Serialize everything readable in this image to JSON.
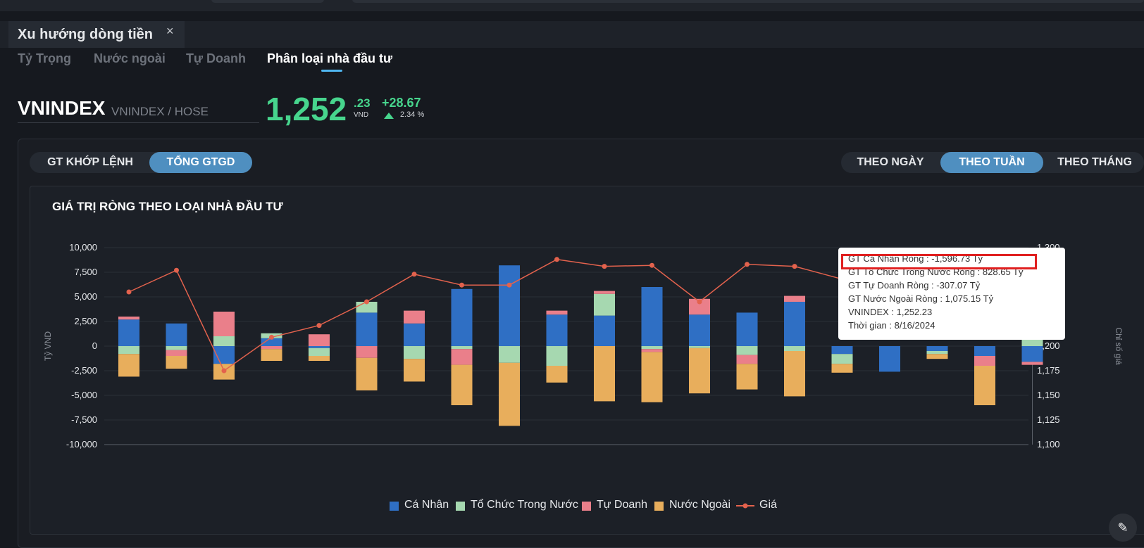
{
  "tab": {
    "title": "Xu hướng dòng tiền",
    "close": "×"
  },
  "subnav": [
    "Tỷ Trọng",
    "Nước ngoài",
    "Tự Doanh",
    "Phân loại nhà đầu tư"
  ],
  "ticker": {
    "symbol": "VNINDEX",
    "exchange": "VNINDEX / HOSE",
    "price_main": "1,252",
    "price_dec": ".23",
    "unit": "VND",
    "change": "+28.67",
    "pct": "2.34 %"
  },
  "value_toggle": [
    "GT KHỚP LỆNH",
    "TỔNG GTGD"
  ],
  "period_toggle": [
    "THEO NGÀY",
    "THEO TUẦN",
    "THEO THÁNG"
  ],
  "chart_title": "GIÁ TRỊ RÒNG THEO LOẠI NHÀ ĐẦU TƯ",
  "tooltip": [
    "GT Cá Nhân Ròng  : -1,596.73 Tỷ",
    "GT Tổ Chức Trong Nước Ròng : 828.65 Tỷ",
    "GT Tự Doanh Ròng : -307.07 Tỷ",
    "GT Nước Ngoài Ròng : 1,075.15 Tỷ",
    "VNINDEX : 1,252.23",
    "Thời gian : 8/16/2024"
  ],
  "colors": {
    "ca_nhan": "#2f6fc4",
    "to_chuc": "#a6d8b0",
    "tu_doanh": "#ea7f8a",
    "nuoc_ngoai": "#e8ae5c",
    "gia": "#e3624d",
    "accent": "#4f8fc0",
    "up": "#47d58d"
  },
  "chart_data": {
    "type": "bar",
    "stacked": true,
    "y_left_label": "Tỷ VND",
    "y_right_label": "Chỉ số giá",
    "y_left_ticks": [
      "10,000",
      "7,500",
      "5,000",
      "2,500",
      "0",
      "-2,500",
      "-5,000",
      "-7,500",
      "-10,000"
    ],
    "y_right_ticks": [
      "1,300",
      "1,275",
      "1,250",
      "1,225",
      "1,200",
      "1,175",
      "1,150",
      "1,125",
      "1,100"
    ],
    "ylim_left": [
      -10000,
      10000
    ],
    "ylim_right": [
      1100,
      1300
    ],
    "series": [
      {
        "name": "Cá Nhân",
        "values": [
          2700,
          2300,
          -1800,
          800,
          -200,
          3400,
          2300,
          5800,
          8200,
          3200,
          3100,
          6000,
          3200,
          3400,
          4500,
          -800,
          -2600,
          -500,
          -1000,
          -1597
        ]
      },
      {
        "name": "Tổ Chức Trong Nước",
        "values": [
          -800,
          -400,
          1000,
          500,
          -800,
          1100,
          -1300,
          -300,
          -1700,
          -2000,
          2200,
          -300,
          -200,
          -900,
          -500,
          -1000,
          0,
          -300,
          0,
          829
        ]
      },
      {
        "name": "Tự Doanh",
        "values": [
          300,
          -600,
          2500,
          -300,
          1200,
          -1200,
          1300,
          -1600,
          0,
          400,
          300,
          -300,
          1600,
          -900,
          600,
          0,
          0,
          0,
          -1000,
          -307
        ]
      },
      {
        "name": "Nước Ngoài",
        "values": [
          -2300,
          -1300,
          -1600,
          -1200,
          -500,
          -3300,
          -2300,
          -4100,
          -6400,
          -1700,
          -5600,
          -5100,
          -4600,
          -2600,
          -4600,
          -900,
          0,
          -500,
          -4000,
          1075
        ]
      }
    ],
    "line": {
      "name": "Giá",
      "values": [
        1255,
        1277,
        1175,
        1209,
        1221,
        1245,
        1273,
        1262,
        1262,
        1288,
        1281,
        1282,
        1245,
        1283,
        1281,
        1268,
        1268,
        1265,
        1262,
        1252.23
      ]
    },
    "legend": [
      "Cá Nhân",
      "Tổ Chức Trong Nước",
      "Tự Doanh",
      "Nước Ngoài",
      "Giá"
    ]
  }
}
